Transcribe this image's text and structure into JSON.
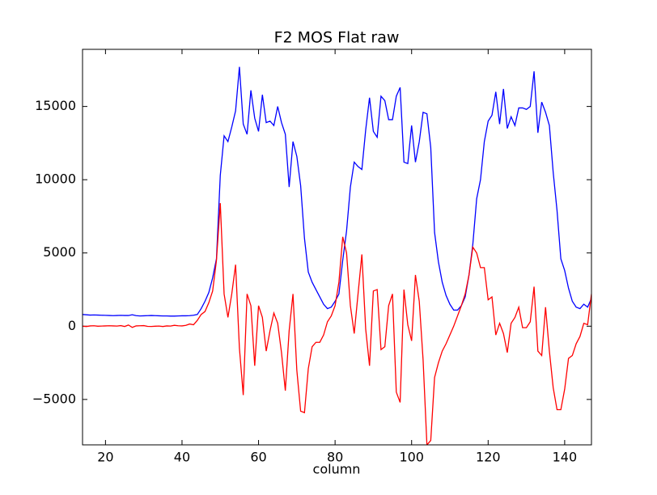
{
  "chart_data": {
    "type": "line",
    "title": "F2 MOS Flat raw",
    "x_label": "column",
    "x": [
      14,
      15,
      16,
      17,
      18,
      19,
      20,
      21,
      22,
      23,
      24,
      25,
      26,
      27,
      28,
      29,
      30,
      31,
      32,
      33,
      34,
      35,
      36,
      37,
      38,
      39,
      40,
      41,
      42,
      43,
      44,
      45,
      46,
      47,
      48,
      49,
      50,
      51,
      52,
      53,
      54,
      55,
      56,
      57,
      58,
      59,
      60,
      61,
      62,
      63,
      64,
      65,
      66,
      67,
      68,
      69,
      70,
      71,
      72,
      73,
      74,
      75,
      76,
      77,
      78,
      79,
      80,
      81,
      82,
      83,
      84,
      85,
      86,
      87,
      88,
      89,
      90,
      91,
      92,
      93,
      94,
      95,
      96,
      97,
      98,
      99,
      100,
      101,
      102,
      103,
      104,
      105,
      106,
      107,
      108,
      109,
      110,
      111,
      112,
      113,
      114,
      115,
      116,
      117,
      118,
      119,
      120,
      121,
      122,
      123,
      124,
      125,
      126,
      127,
      128,
      129,
      130,
      131,
      132,
      133,
      134,
      135,
      136,
      137,
      138,
      139,
      140,
      141,
      142,
      143,
      144,
      145,
      146,
      147
    ],
    "series": [
      {
        "color": "#0000ff",
        "values": [
          800,
          780,
          760,
          770,
          760,
          750,
          740,
          730,
          720,
          730,
          740,
          730,
          730,
          780,
          720,
          700,
          710,
          720,
          730,
          720,
          710,
          700,
          700,
          690,
          690,
          700,
          710,
          710,
          720,
          750,
          800,
          1200,
          1700,
          2300,
          3300,
          4600,
          10300,
          13000,
          12600,
          13600,
          14700,
          17700,
          13800,
          13100,
          16100,
          14200,
          13300,
          15800,
          13900,
          14000,
          13700,
          15000,
          13900,
          13100,
          9500,
          12600,
          11600,
          9600,
          6000,
          3700,
          3000,
          2500,
          2000,
          1500,
          1200,
          1300,
          1700,
          2200,
          4500,
          6500,
          9500,
          11200,
          10900,
          10700,
          13400,
          15600,
          13300,
          12900,
          15700,
          15400,
          14100,
          14100,
          15700,
          16300,
          11200,
          11100,
          13700,
          11200,
          12600,
          14600,
          14500,
          12200,
          6400,
          4400,
          3000,
          2100,
          1500,
          1100,
          1100,
          1400,
          2000,
          3500,
          5600,
          8700,
          10000,
          12600,
          14000,
          14400,
          16000,
          13800,
          16200,
          13500,
          14300,
          13700,
          14900,
          14900,
          14800,
          15000,
          17400,
          13200,
          15300,
          14600,
          13700,
          10500,
          7900,
          4600,
          3800,
          2600,
          1700,
          1300,
          1200,
          1500,
          1300,
          1900
        ]
      },
      {
        "color": "#ff0000",
        "values": [
          0,
          -20,
          20,
          30,
          0,
          10,
          20,
          30,
          20,
          10,
          40,
          -20,
          80,
          -80,
          20,
          30,
          40,
          -10,
          -20,
          0,
          10,
          -20,
          20,
          10,
          60,
          30,
          20,
          60,
          150,
          100,
          400,
          800,
          1000,
          1600,
          2400,
          4500,
          8400,
          2200,
          600,
          2200,
          4200,
          -1500,
          -4700,
          2200,
          1400,
          -2700,
          1400,
          600,
          -1700,
          -300,
          900,
          200,
          -1800,
          -4400,
          -300,
          2200,
          -3000,
          -5800,
          -5900,
          -2900,
          -1400,
          -1100,
          -1100,
          -600,
          300,
          700,
          1400,
          3000,
          6100,
          5000,
          1400,
          -500,
          2200,
          4900,
          -200,
          -2700,
          2400,
          2500,
          -1600,
          -1400,
          1400,
          2200,
          -4500,
          -5200,
          2500,
          100,
          -1000,
          3500,
          1700,
          -2300,
          -8100,
          -7800,
          -3500,
          -2500,
          -1700,
          -1200,
          -600,
          0,
          700,
          1400,
          2200,
          3500,
          5400,
          5000,
          4000,
          4000,
          1800,
          2000,
          -600,
          200,
          -500,
          -1800,
          200,
          600,
          1300,
          -100,
          -100,
          300,
          2700,
          -1700,
          -2000,
          1300,
          -1700,
          -4200,
          -5700,
          -5700,
          -4300,
          -2200,
          -2000,
          -1200,
          -700,
          200,
          100,
          2200
        ]
      }
    ],
    "xlim": [
      14,
      147
    ],
    "ylim": [
      -8100,
      18900
    ],
    "xticks": [
      20,
      40,
      60,
      80,
      100,
      120,
      140
    ],
    "yticks": [
      {
        "value": -5000,
        "label": "−5000"
      },
      0,
      5000,
      10000,
      15000
    ]
  }
}
